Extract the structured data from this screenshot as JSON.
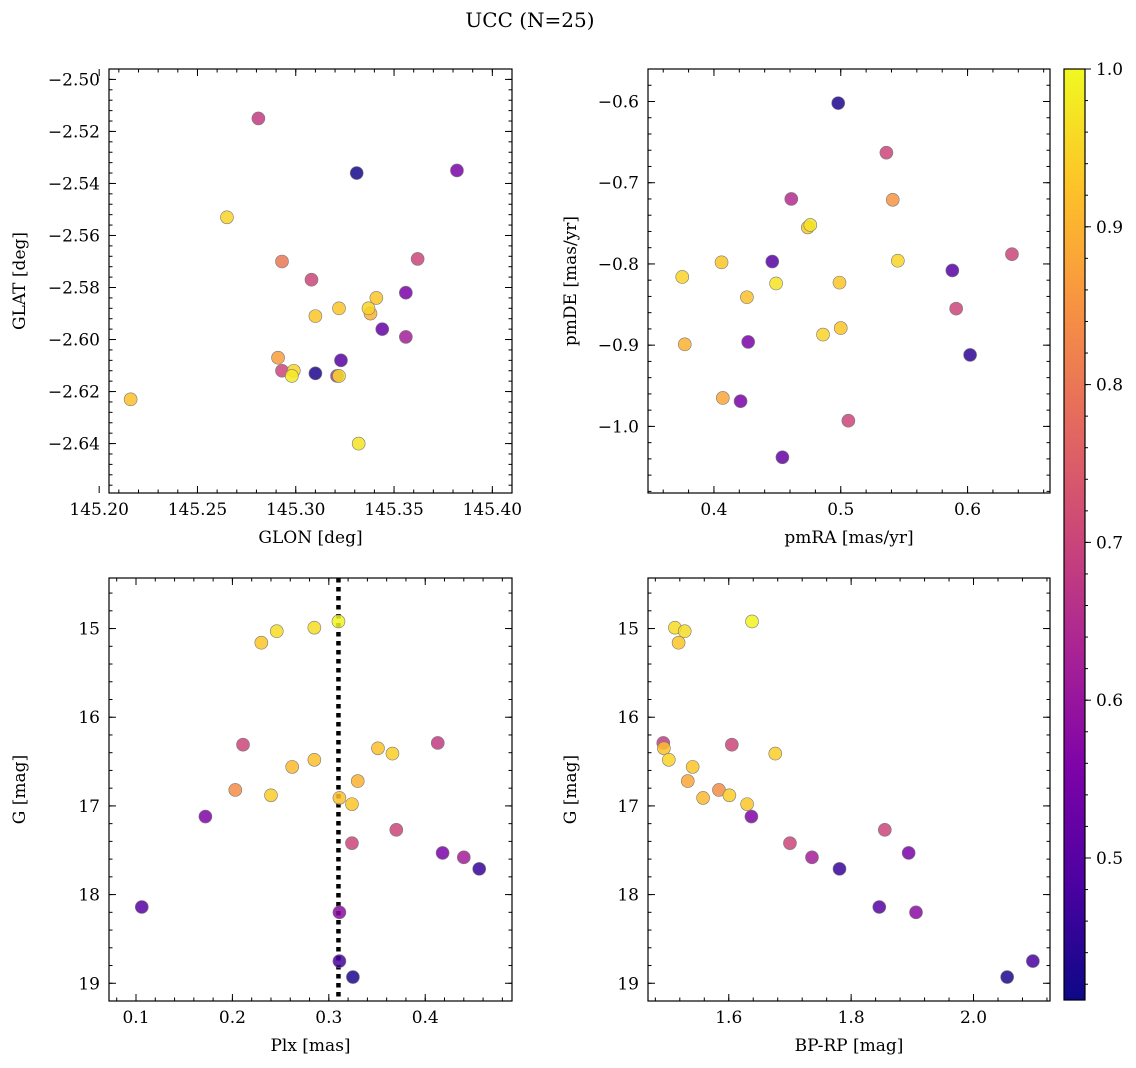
{
  "title": "UCC (N=25)",
  "colorbar": {
    "min": 0.41,
    "max": 1.0,
    "ticks": [
      "0.5",
      "0.6",
      "0.7",
      "0.8",
      "0.9",
      "1.0"
    ],
    "colormap": "plasma"
  },
  "chart_data": [
    {
      "type": "scatter",
      "xlabel": "GLON [deg]",
      "ylabel": "GLAT [deg]",
      "xlim": [
        145.205,
        145.41
      ],
      "ylim": [
        -2.659,
        -2.496
      ],
      "xticks": [
        "145.20",
        "145.25",
        "145.30",
        "145.35",
        "145.40"
      ],
      "yticks": [
        "−2.64",
        "−2.62",
        "−2.60",
        "−2.58",
        "−2.56",
        "−2.54",
        "−2.52",
        "−2.50"
      ],
      "points": [
        {
          "x": 145.281,
          "y": -2.515,
          "c": 0.68
        },
        {
          "x": 145.331,
          "y": -2.536,
          "c": 0.42
        },
        {
          "x": 145.382,
          "y": -2.535,
          "c": 0.55
        },
        {
          "x": 145.265,
          "y": -2.553,
          "c": 0.95
        },
        {
          "x": 145.293,
          "y": -2.57,
          "c": 0.8
        },
        {
          "x": 145.362,
          "y": -2.569,
          "c": 0.7
        },
        {
          "x": 145.308,
          "y": -2.577,
          "c": 0.7
        },
        {
          "x": 145.341,
          "y": -2.584,
          "c": 0.93
        },
        {
          "x": 145.356,
          "y": -2.582,
          "c": 0.55
        },
        {
          "x": 145.31,
          "y": -2.591,
          "c": 0.93
        },
        {
          "x": 145.322,
          "y": -2.588,
          "c": 0.93
        },
        {
          "x": 145.338,
          "y": -2.59,
          "c": 0.9
        },
        {
          "x": 145.337,
          "y": -2.588,
          "c": 0.95
        },
        {
          "x": 145.344,
          "y": -2.596,
          "c": 0.52
        },
        {
          "x": 145.356,
          "y": -2.599,
          "c": 0.62
        },
        {
          "x": 145.291,
          "y": -2.607,
          "c": 0.87
        },
        {
          "x": 145.293,
          "y": -2.612,
          "c": 0.7
        },
        {
          "x": 145.299,
          "y": -2.612,
          "c": 0.95
        },
        {
          "x": 145.298,
          "y": -2.614,
          "c": 0.98
        },
        {
          "x": 145.31,
          "y": -2.613,
          "c": 0.43
        },
        {
          "x": 145.321,
          "y": -2.614,
          "c": 0.65
        },
        {
          "x": 145.322,
          "y": -2.614,
          "c": 0.96
        },
        {
          "x": 145.323,
          "y": -2.608,
          "c": 0.5
        },
        {
          "x": 145.216,
          "y": -2.623,
          "c": 0.92
        },
        {
          "x": 145.332,
          "y": -2.64,
          "c": 0.97
        }
      ]
    },
    {
      "type": "scatter",
      "xlabel": "pmRA [mas/yr]",
      "ylabel": "pmDE [mas/yr]",
      "xlim": [
        0.348,
        0.665
      ],
      "ylim": [
        -1.082,
        -0.56
      ],
      "xticks": [
        "0.4",
        "0.5",
        "0.6"
      ],
      "yticks": [
        "−1.0",
        "−0.9",
        "−0.8",
        "−0.7",
        "−0.6"
      ],
      "points": [
        {
          "x": 0.498,
          "y": -0.602,
          "c": 0.43
        },
        {
          "x": 0.536,
          "y": -0.663,
          "c": 0.7
        },
        {
          "x": 0.461,
          "y": -0.72,
          "c": 0.65
        },
        {
          "x": 0.541,
          "y": -0.721,
          "c": 0.85
        },
        {
          "x": 0.474,
          "y": -0.755,
          "c": 0.93
        },
        {
          "x": 0.476,
          "y": -0.752,
          "c": 0.97
        },
        {
          "x": 0.635,
          "y": -0.788,
          "c": 0.7
        },
        {
          "x": 0.446,
          "y": -0.797,
          "c": 0.5
        },
        {
          "x": 0.545,
          "y": -0.796,
          "c": 0.95
        },
        {
          "x": 0.406,
          "y": -0.798,
          "c": 0.93
        },
        {
          "x": 0.375,
          "y": -0.816,
          "c": 0.95
        },
        {
          "x": 0.588,
          "y": -0.808,
          "c": 0.5
        },
        {
          "x": 0.449,
          "y": -0.824,
          "c": 0.97
        },
        {
          "x": 0.499,
          "y": -0.823,
          "c": 0.93
        },
        {
          "x": 0.426,
          "y": -0.841,
          "c": 0.92
        },
        {
          "x": 0.591,
          "y": -0.855,
          "c": 0.7
        },
        {
          "x": 0.5,
          "y": -0.879,
          "c": 0.93
        },
        {
          "x": 0.486,
          "y": -0.887,
          "c": 0.95
        },
        {
          "x": 0.377,
          "y": -0.899,
          "c": 0.9
        },
        {
          "x": 0.427,
          "y": -0.896,
          "c": 0.55
        },
        {
          "x": 0.602,
          "y": -0.912,
          "c": 0.45
        },
        {
          "x": 0.407,
          "y": -0.965,
          "c": 0.88
        },
        {
          "x": 0.421,
          "y": -0.969,
          "c": 0.55
        },
        {
          "x": 0.506,
          "y": -0.993,
          "c": 0.7
        },
        {
          "x": 0.454,
          "y": -1.038,
          "c": 0.52
        }
      ]
    },
    {
      "type": "scatter",
      "xlabel": "Plx [mas]",
      "ylabel": "G [mag]",
      "xlim": [
        0.072,
        0.49
      ],
      "ylim": [
        19.2,
        14.43
      ],
      "y_inverted": true,
      "vline": 0.31,
      "xticks": [
        "0.1",
        "0.2",
        "0.3",
        "0.4"
      ],
      "yticks": [
        "15",
        "16",
        "17",
        "18",
        "19"
      ],
      "points": [
        {
          "x": 0.31,
          "y": 14.92,
          "c": 0.99
        },
        {
          "x": 0.285,
          "y": 14.99,
          "c": 0.96
        },
        {
          "x": 0.246,
          "y": 15.03,
          "c": 0.96
        },
        {
          "x": 0.23,
          "y": 15.16,
          "c": 0.93
        },
        {
          "x": 0.211,
          "y": 16.31,
          "c": 0.7
        },
        {
          "x": 0.413,
          "y": 16.29,
          "c": 0.68
        },
        {
          "x": 0.351,
          "y": 16.35,
          "c": 0.92
        },
        {
          "x": 0.366,
          "y": 16.41,
          "c": 0.94
        },
        {
          "x": 0.285,
          "y": 16.48,
          "c": 0.92
        },
        {
          "x": 0.262,
          "y": 16.56,
          "c": 0.91
        },
        {
          "x": 0.33,
          "y": 16.72,
          "c": 0.9
        },
        {
          "x": 0.203,
          "y": 16.82,
          "c": 0.84
        },
        {
          "x": 0.24,
          "y": 16.88,
          "c": 0.94
        },
        {
          "x": 0.311,
          "y": 16.91,
          "c": 0.92
        },
        {
          "x": 0.324,
          "y": 16.98,
          "c": 0.93
        },
        {
          "x": 0.172,
          "y": 17.12,
          "c": 0.56
        },
        {
          "x": 0.37,
          "y": 17.27,
          "c": 0.7
        },
        {
          "x": 0.324,
          "y": 17.42,
          "c": 0.7
        },
        {
          "x": 0.418,
          "y": 17.53,
          "c": 0.55
        },
        {
          "x": 0.44,
          "y": 17.58,
          "c": 0.62
        },
        {
          "x": 0.456,
          "y": 17.71,
          "c": 0.46
        },
        {
          "x": 0.106,
          "y": 18.14,
          "c": 0.5
        },
        {
          "x": 0.311,
          "y": 18.2,
          "c": 0.58
        },
        {
          "x": 0.311,
          "y": 18.75,
          "c": 0.48
        },
        {
          "x": 0.325,
          "y": 18.93,
          "c": 0.43
        }
      ]
    },
    {
      "type": "scatter",
      "xlabel": "BP-RP [mag]",
      "ylabel": "G [mag]",
      "xlim": [
        1.468,
        2.125
      ],
      "ylim": [
        19.2,
        14.43
      ],
      "y_inverted": true,
      "xticks": [
        "1.6",
        "1.8",
        "2.0"
      ],
      "yticks": [
        "15",
        "16",
        "17",
        "18",
        "19"
      ],
      "points": [
        {
          "x": 1.638,
          "y": 14.92,
          "c": 0.99
        },
        {
          "x": 1.512,
          "y": 14.99,
          "c": 0.96
        },
        {
          "x": 1.528,
          "y": 15.03,
          "c": 0.96
        },
        {
          "x": 1.518,
          "y": 15.16,
          "c": 0.93
        },
        {
          "x": 1.493,
          "y": 16.29,
          "c": 0.68
        },
        {
          "x": 1.605,
          "y": 16.31,
          "c": 0.7
        },
        {
          "x": 1.494,
          "y": 16.35,
          "c": 0.92
        },
        {
          "x": 1.676,
          "y": 16.41,
          "c": 0.94
        },
        {
          "x": 1.502,
          "y": 16.48,
          "c": 0.95
        },
        {
          "x": 1.541,
          "y": 16.56,
          "c": 0.93
        },
        {
          "x": 1.533,
          "y": 16.72,
          "c": 0.88
        },
        {
          "x": 1.584,
          "y": 16.82,
          "c": 0.84
        },
        {
          "x": 1.558,
          "y": 16.91,
          "c": 0.91
        },
        {
          "x": 1.601,
          "y": 16.88,
          "c": 0.94
        },
        {
          "x": 1.63,
          "y": 16.98,
          "c": 0.93
        },
        {
          "x": 1.637,
          "y": 17.12,
          "c": 0.56
        },
        {
          "x": 1.855,
          "y": 17.27,
          "c": 0.7
        },
        {
          "x": 1.7,
          "y": 17.42,
          "c": 0.7
        },
        {
          "x": 1.736,
          "y": 17.58,
          "c": 0.62
        },
        {
          "x": 1.894,
          "y": 17.53,
          "c": 0.55
        },
        {
          "x": 1.781,
          "y": 17.71,
          "c": 0.46
        },
        {
          "x": 1.846,
          "y": 18.14,
          "c": 0.5
        },
        {
          "x": 1.906,
          "y": 18.2,
          "c": 0.58
        },
        {
          "x": 2.097,
          "y": 18.75,
          "c": 0.48
        },
        {
          "x": 2.055,
          "y": 18.93,
          "c": 0.43
        }
      ]
    }
  ]
}
